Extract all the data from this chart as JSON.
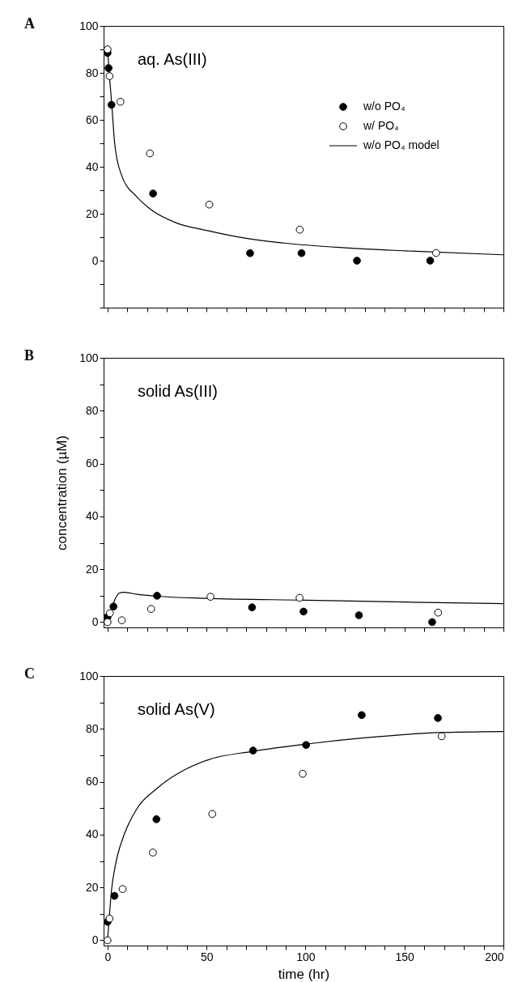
{
  "chart_data": [
    {
      "type": "scatter",
      "title": "A",
      "annotations": [
        "aq. As(III)"
      ],
      "xlim": [
        -2,
        200
      ],
      "ylim": [
        -20,
        100
      ],
      "xticks": [
        0,
        {
          "value": 10,
          "label": null
        },
        {
          "value": 20,
          "label": null
        },
        {
          "value": 30,
          "label": null
        },
        {
          "value": 40,
          "label": null
        },
        50,
        {
          "value": 60,
          "label": null
        },
        {
          "value": 70,
          "label": null
        },
        {
          "value": 80,
          "label": null
        },
        {
          "value": 90,
          "label": null
        },
        100,
        {
          "value": 110,
          "label": null
        },
        {
          "value": 120,
          "label": null
        },
        {
          "value": 130,
          "label": null
        },
        {
          "value": 140,
          "label": null
        },
        150,
        {
          "value": 160,
          "label": null
        },
        {
          "value": 170,
          "label": null
        },
        {
          "value": 180,
          "label": null
        },
        {
          "value": 190,
          "label": null
        },
        200
      ],
      "yticks": [
        {
          "value": -20,
          "label": null
        },
        {
          "value": -10,
          "label": null
        },
        0,
        {
          "value": 10,
          "label": null
        },
        20,
        {
          "value": 30,
          "label": null
        },
        40,
        {
          "value": 50,
          "label": null
        },
        60,
        {
          "value": 70,
          "label": null
        },
        80,
        {
          "value": 90,
          "label": null
        },
        100
      ],
      "tick_labels": "y",
      "grid": false,
      "legend": "top right",
      "marker": "circle",
      "line_style": "solid",
      "series": [
        {
          "name": "w/o PO₄",
          "color": "#000000",
          "x": [
            0,
            0.5,
            2,
            23,
            72,
            98,
            126,
            163
          ],
          "values": [
            88.5,
            82,
            66.4,
            28.6,
            3.2,
            3.2,
            0,
            0
          ]
        },
        {
          "name": "w/ PO₄",
          "color": "#ffffff",
          "x": [
            0,
            1,
            6.5,
            21.4,
            51.4,
            97.1,
            166
          ],
          "values": [
            90,
            78.6,
            67.7,
            45.7,
            23.9,
            13.2,
            3.3
          ]
        },
        {
          "name": "w/o PO₄ model",
          "type": "line",
          "marker": "none",
          "color": "#000000",
          "x": [
            0,
            1,
            2,
            3.6,
            7,
            15,
            22,
            35,
            50.5,
            70,
            89,
            120,
            150,
            200
          ],
          "values": [
            90,
            78,
            68,
            50,
            36.6,
            27,
            21.7,
            16,
            12.8,
            9.5,
            7.5,
            5.5,
            4.2,
            2.5
          ]
        }
      ]
    },
    {
      "type": "scatter",
      "title": "B",
      "ylabel": "concentration (µM)",
      "annotations": [
        "solid As(III)"
      ],
      "xlim": [
        -2,
        200
      ],
      "ylim": [
        -2,
        100
      ],
      "xticks": [
        0,
        {
          "value": 10,
          "label": null
        },
        {
          "value": 20,
          "label": null
        },
        {
          "value": 30,
          "label": null
        },
        {
          "value": 40,
          "label": null
        },
        50,
        {
          "value": 60,
          "label": null
        },
        {
          "value": 70,
          "label": null
        },
        {
          "value": 80,
          "label": null
        },
        {
          "value": 90,
          "label": null
        },
        100,
        {
          "value": 110,
          "label": null
        },
        {
          "value": 120,
          "label": null
        },
        {
          "value": 130,
          "label": null
        },
        {
          "value": 140,
          "label": null
        },
        150,
        {
          "value": 160,
          "label": null
        },
        {
          "value": 170,
          "label": null
        },
        {
          "value": 180,
          "label": null
        },
        {
          "value": 190,
          "label": null
        },
        200
      ],
      "yticks": [
        0,
        {
          "value": 10,
          "label": null
        },
        20,
        {
          "value": 30,
          "label": null
        },
        40,
        {
          "value": 50,
          "label": null
        },
        60,
        {
          "value": 70,
          "label": null
        },
        80,
        {
          "value": 90,
          "label": null
        },
        100
      ],
      "tick_labels": "y",
      "grid": false,
      "marker": "circle",
      "line_style": "solid",
      "series": [
        {
          "color": "#000000",
          "x": [
            0,
            3,
            25,
            73,
            99,
            127,
            164
          ],
          "values": [
            2,
            5.9,
            10,
            5.6,
            4,
            2.6,
            0
          ]
        },
        {
          "color": "#ffffff",
          "x": [
            0,
            1.2,
            7.2,
            22,
            52,
            97,
            167
          ],
          "values": [
            0,
            3.4,
            0.7,
            5,
            9.6,
            9.2,
            3.6
          ]
        },
        {
          "type": "line",
          "marker": "none",
          "color": "#000000",
          "x": [
            0,
            2,
            4,
            6,
            8,
            15,
            25,
            50,
            100,
            150,
            200
          ],
          "values": [
            0,
            5,
            9,
            11,
            11.3,
            10.5,
            9.8,
            9,
            8.3,
            7.6,
            7
          ]
        }
      ]
    },
    {
      "type": "scatter",
      "title": "C",
      "xlabel": "time (hr)",
      "annotations": [
        "solid As(V)"
      ],
      "xlim": [
        -2,
        200
      ],
      "ylim": [
        -2,
        100
      ],
      "xticks": [
        0,
        {
          "value": 10,
          "label": null
        },
        {
          "value": 20,
          "label": null
        },
        {
          "value": 30,
          "label": null
        },
        {
          "value": 40,
          "label": null
        },
        50,
        {
          "value": 60,
          "label": null
        },
        {
          "value": 70,
          "label": null
        },
        {
          "value": 80,
          "label": null
        },
        {
          "value": 90,
          "label": null
        },
        100,
        {
          "value": 110,
          "label": null
        },
        {
          "value": 120,
          "label": null
        },
        {
          "value": 130,
          "label": null
        },
        {
          "value": 140,
          "label": null
        },
        150,
        {
          "value": 160,
          "label": null
        },
        {
          "value": 170,
          "label": null
        },
        {
          "value": 180,
          "label": null
        },
        {
          "value": 190,
          "label": null
        },
        200
      ],
      "yticks": [
        0,
        {
          "value": 10,
          "label": null
        },
        20,
        {
          "value": 30,
          "label": null
        },
        40,
        {
          "value": 50,
          "label": null
        },
        60,
        {
          "value": 70,
          "label": null
        },
        80,
        {
          "value": 90,
          "label": null
        },
        100
      ],
      "grid": false,
      "marker": "circle",
      "line_style": "solid",
      "series": [
        {
          "color": "#000000",
          "x": [
            0,
            3.5,
            24.7,
            73.5,
            100.3,
            128.4,
            166.9
          ],
          "values": [
            7,
            16.8,
            45.8,
            71.8,
            73.9,
            85.2,
            84.1
          ]
        },
        {
          "color": "#ffffff",
          "x": [
            0,
            1,
            7.6,
            22.9,
            52.9,
            98.6,
            168.8
          ],
          "values": [
            0,
            8.2,
            19.4,
            33.2,
            47.8,
            63,
            77.2
          ]
        },
        {
          "type": "line",
          "marker": "none",
          "color": "#000000",
          "x": [
            0,
            1,
            2,
            3.6,
            5,
            8.6,
            15,
            24.9,
            50.5,
            73.5,
            100,
            128.5,
            167,
            200
          ],
          "values": [
            0,
            10,
            19,
            27,
            32,
            40.4,
            50,
            57.4,
            68.2,
            71.5,
            74.2,
            76.5,
            78.6,
            79
          ]
        }
      ]
    }
  ]
}
